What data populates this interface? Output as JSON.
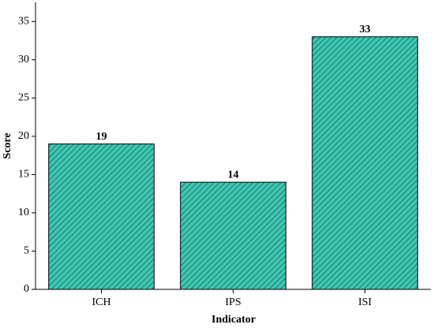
{
  "chart_data": {
    "type": "bar",
    "x_label": "Indicator",
    "y_label": "Score",
    "categories": [
      "ICH",
      "IPS",
      "ISI"
    ],
    "values": [
      19,
      14,
      33
    ],
    "color": "#3cc8b4",
    "ylim": [
      0,
      37.5
    ],
    "yticks": [
      0,
      5,
      10,
      15,
      20,
      25,
      30,
      35
    ],
    "grid": false
  }
}
